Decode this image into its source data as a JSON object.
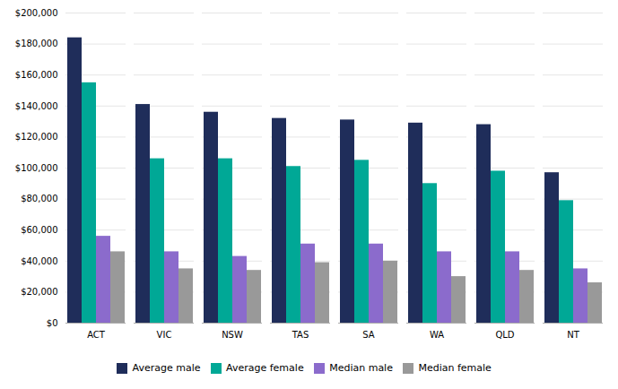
{
  "chart_data": {
    "type": "bar",
    "categories": [
      "ACT",
      "VIC",
      "NSW",
      "TAS",
      "SA",
      "WA",
      "QLD",
      "NT"
    ],
    "series": [
      {
        "name": "Average male",
        "color": "#1f2d5a",
        "values": [
          184000,
          141000,
          136000,
          132000,
          131000,
          129000,
          128000,
          97000
        ]
      },
      {
        "name": "Average female",
        "color": "#00a896",
        "values": [
          155000,
          106000,
          106000,
          101000,
          105000,
          90000,
          98000,
          79000
        ]
      },
      {
        "name": "Median male",
        "color": "#8b6bcc",
        "values": [
          56000,
          46000,
          43000,
          51000,
          51000,
          46000,
          46000,
          35000
        ]
      },
      {
        "name": "Median female",
        "color": "#999999",
        "values": [
          46000,
          35000,
          34000,
          39000,
          40000,
          30000,
          34000,
          26000
        ]
      }
    ],
    "ylim": [
      0,
      200000
    ],
    "yticks": [
      {
        "value": 0,
        "label": "$0"
      },
      {
        "value": 20000,
        "label": "$20,000"
      },
      {
        "value": 40000,
        "label": "$40,000"
      },
      {
        "value": 60000,
        "label": "$60,000"
      },
      {
        "value": 80000,
        "label": "$80,000"
      },
      {
        "value": 100000,
        "label": "$100,000"
      },
      {
        "value": 120000,
        "label": "$120,000"
      },
      {
        "value": 140000,
        "label": "$140,000"
      },
      {
        "value": 160000,
        "label": "$160,000"
      },
      {
        "value": 180000,
        "label": "$180,000"
      },
      {
        "value": 200000,
        "label": "$200,000"
      }
    ],
    "grid": true,
    "legend": "bottom"
  }
}
